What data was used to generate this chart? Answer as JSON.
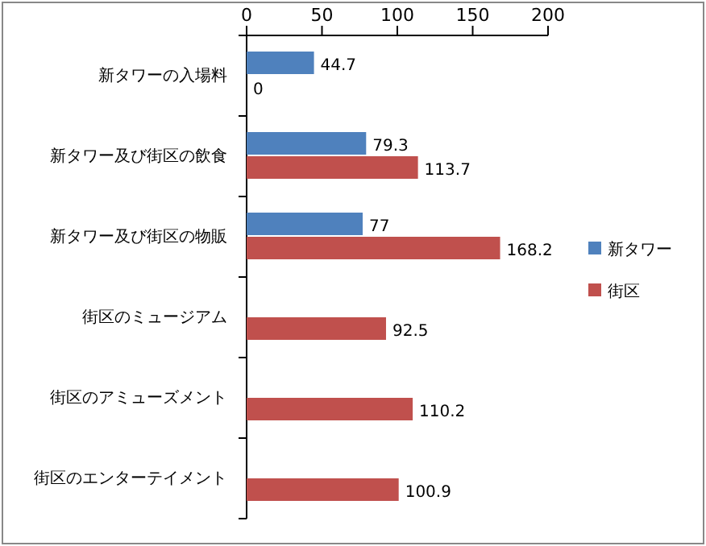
{
  "chart_data": {
    "type": "bar",
    "orientation": "horizontal",
    "categories": [
      "新タワーの入場料",
      "新タワー及び街区の飲食",
      "新タワー及び街区の物販",
      "街区のミュージアム",
      "街区のアミューズメント",
      "街区のエンターテイメント"
    ],
    "series": [
      {
        "name": "新タワー",
        "color": "#4f81bd",
        "values": [
          44.7,
          79.3,
          77,
          null,
          null,
          null
        ]
      },
      {
        "name": "街区",
        "color": "#c0504d",
        "values": [
          0,
          113.7,
          168.2,
          92.5,
          110.2,
          100.9
        ]
      }
    ],
    "xlim": [
      0,
      200
    ],
    "xticks": [
      0,
      50,
      100,
      150,
      200
    ],
    "data_labels": true,
    "legend": "right"
  }
}
